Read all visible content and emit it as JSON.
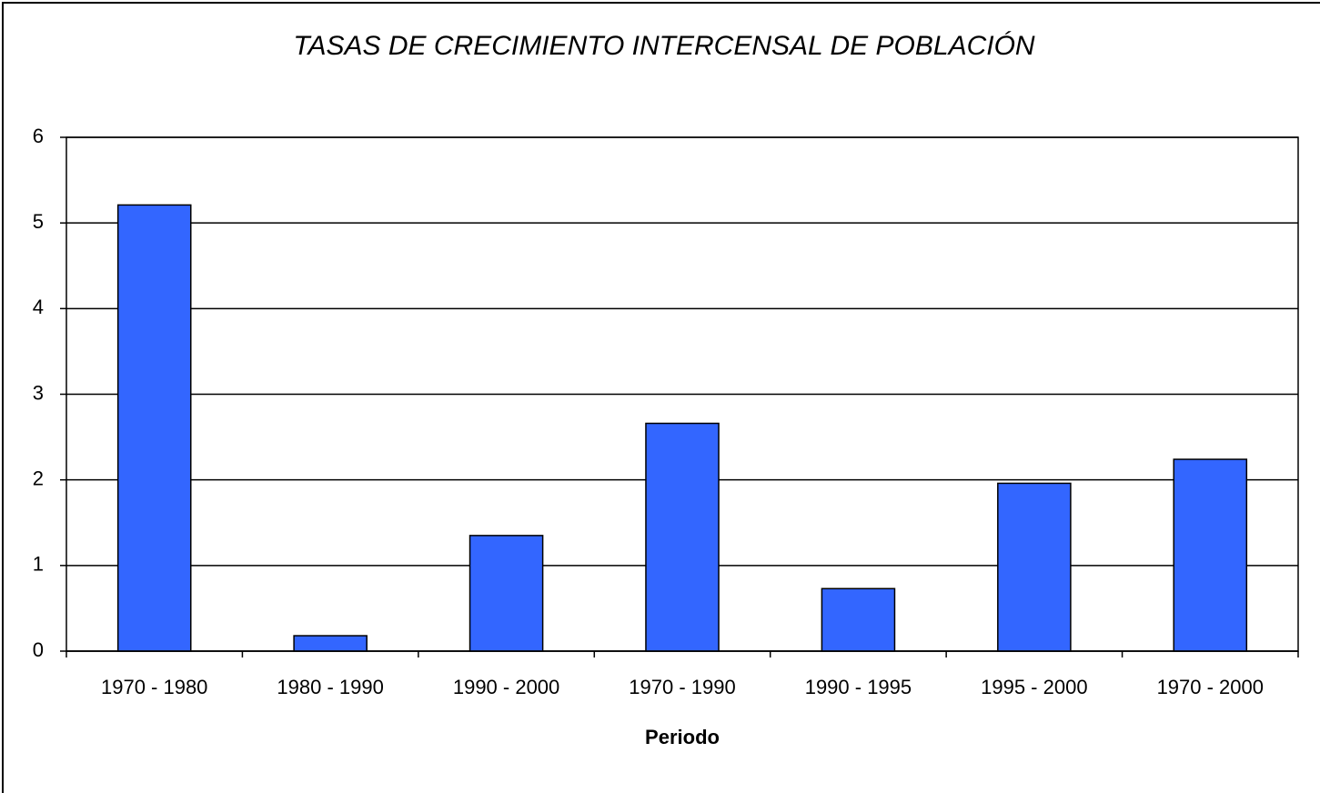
{
  "chart_data": {
    "type": "bar",
    "title": "TASAS DE CRECIMIENTO INTERCENSAL DE POBLACIÓN",
    "x_label": "Periodo",
    "categories": [
      "1970 - 1980",
      "1980 - 1990",
      "1990 - 2000",
      "1970 - 1990",
      "1990 - 1995",
      "1995 - 2000",
      "1970 - 2000"
    ],
    "values": [
      5.21,
      0.18,
      1.35,
      2.66,
      0.73,
      1.96,
      2.24
    ],
    "color": "#3366ff",
    "ylim": [
      0,
      6
    ],
    "yticks": [
      0,
      1,
      2,
      3,
      4,
      5,
      6
    ],
    "grid": true
  }
}
